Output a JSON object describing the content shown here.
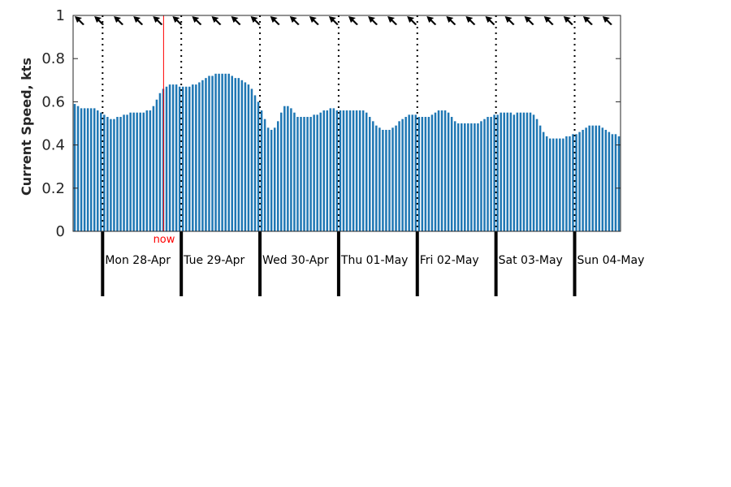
{
  "chart_data": {
    "type": "bar",
    "ylabel": "Current Speed, kts",
    "ylim": [
      0,
      1
    ],
    "yticks": [
      0,
      0.2,
      0.4,
      0.6,
      0.8,
      1
    ],
    "ytick_labels": [
      "0",
      "0.2",
      "0.4",
      "0.6",
      "0.8",
      "1"
    ],
    "grid": false,
    "colors": {
      "bar": "#1f77b4",
      "now_line": "#ff0000",
      "axis": "#262626",
      "day_line": "#000000"
    },
    "now_label": "now",
    "now_hour": 27.6,
    "hours_before_first_midnight": 9,
    "day_labels": [
      "Mon 28-Apr",
      "Tue 29-Apr",
      "Wed 30-Apr",
      "Thu 01-May",
      "Fri 02-May",
      "Sat 03-May",
      "Sun 04-May"
    ],
    "direction_arrows": {
      "icon": "arrow-icon",
      "direction": "north-west",
      "count": 28
    },
    "bar_values": [
      0.59,
      0.58,
      0.57,
      0.57,
      0.57,
      0.57,
      0.57,
      0.56,
      0.55,
      0.54,
      0.53,
      0.52,
      0.52,
      0.53,
      0.53,
      0.54,
      0.54,
      0.55,
      0.55,
      0.55,
      0.55,
      0.55,
      0.56,
      0.56,
      0.58,
      0.61,
      0.64,
      0.66,
      0.67,
      0.68,
      0.68,
      0.68,
      0.67,
      0.67,
      0.67,
      0.67,
      0.68,
      0.68,
      0.69,
      0.7,
      0.71,
      0.72,
      0.72,
      0.73,
      0.73,
      0.73,
      0.73,
      0.73,
      0.72,
      0.71,
      0.71,
      0.7,
      0.69,
      0.68,
      0.66,
      0.63,
      0.6,
      0.56,
      0.52,
      0.48,
      0.47,
      0.48,
      0.51,
      0.55,
      0.58,
      0.58,
      0.57,
      0.55,
      0.53,
      0.53,
      0.53,
      0.53,
      0.53,
      0.54,
      0.54,
      0.55,
      0.56,
      0.56,
      0.57,
      0.57,
      0.56,
      0.56,
      0.56,
      0.56,
      0.56,
      0.56,
      0.56,
      0.56,
      0.56,
      0.55,
      0.53,
      0.51,
      0.49,
      0.48,
      0.47,
      0.47,
      0.47,
      0.48,
      0.49,
      0.51,
      0.52,
      0.53,
      0.54,
      0.54,
      0.54,
      0.53,
      0.53,
      0.53,
      0.53,
      0.54,
      0.55,
      0.56,
      0.56,
      0.56,
      0.55,
      0.53,
      0.51,
      0.5,
      0.5,
      0.5,
      0.5,
      0.5,
      0.5,
      0.5,
      0.51,
      0.52,
      0.53,
      0.53,
      0.54,
      0.54,
      0.55,
      0.55,
      0.55,
      0.55,
      0.54,
      0.55,
      0.55,
      0.55,
      0.55,
      0.55,
      0.54,
      0.52,
      0.49,
      0.46,
      0.44,
      0.43,
      0.43,
      0.43,
      0.43,
      0.43,
      0.44,
      0.44,
      0.45,
      0.45,
      0.46,
      0.47,
      0.48,
      0.49,
      0.49,
      0.49,
      0.49,
      0.48,
      0.47,
      0.46,
      0.45,
      0.45,
      0.44
    ]
  }
}
